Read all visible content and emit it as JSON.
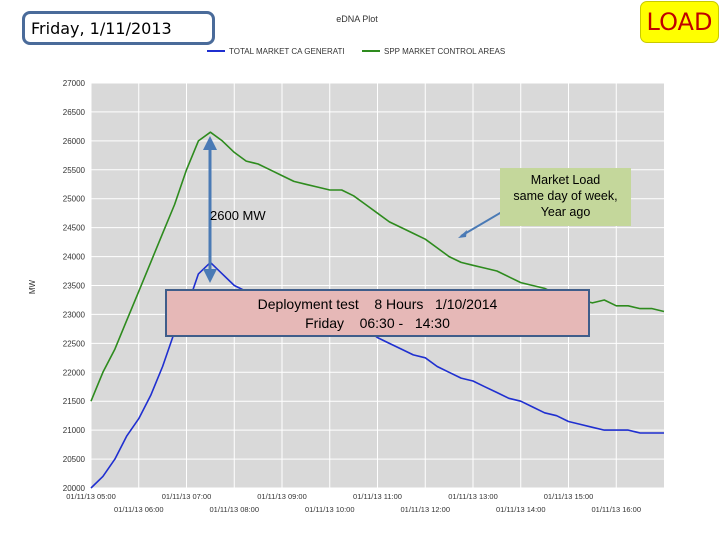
{
  "header": {
    "date_label": "Friday, 1/11/2013",
    "load_badge": "LOAD",
    "plot_title": "eDNA Plot"
  },
  "annotations": {
    "market_load_callout": "Market Load\nsame day of week,\nYear ago",
    "deployment_box": "Deployment test    8 Hours   1/10/2014\nFriday    06:30 -   14:30",
    "mw_difference": "2600 MW"
  },
  "colors": {
    "total_market": "#1f2fd0",
    "spp_control": "#2e8b1e",
    "plot_bg": "#d9d9d9",
    "grid": "#ffffff",
    "arrow": "#4a7ab5"
  },
  "chart_data": {
    "type": "line",
    "title": "eDNA Plot",
    "ylabel": "MW",
    "ylim": [
      20000,
      27000
    ],
    "ytick_step": 500,
    "yticks": [
      "20000",
      "20500",
      "21000",
      "21500",
      "22000",
      "22500",
      "23000",
      "23500",
      "24000",
      "24500",
      "25000",
      "25500",
      "26000",
      "26500",
      "27000"
    ],
    "xlim": [
      5,
      17
    ],
    "xticks_top": [
      {
        "h": 5,
        "label": "01/11/13 05:00"
      },
      {
        "h": 7,
        "label": "01/11/13 07:00"
      },
      {
        "h": 9,
        "label": "01/11/13 09:00"
      },
      {
        "h": 11,
        "label": "01/11/13 11:00"
      },
      {
        "h": 13,
        "label": "01/11/13 13:00"
      },
      {
        "h": 15,
        "label": "01/11/13 15:00"
      }
    ],
    "xticks_bottom": [
      {
        "h": 6,
        "label": "01/11/13 06:00"
      },
      {
        "h": 8,
        "label": "01/11/13 08:00"
      },
      {
        "h": 10,
        "label": "01/11/13 10:00"
      },
      {
        "h": 12,
        "label": "01/11/13 12:00"
      },
      {
        "h": 14,
        "label": "01/11/13 14:00"
      },
      {
        "h": 16,
        "label": "01/11/13 16:00"
      }
    ],
    "legend_position": "top",
    "grid": true,
    "series": [
      {
        "name": "TOTAL MARKET CA GENERATI",
        "color": "#1f2fd0",
        "x": [
          5.0,
          5.25,
          5.5,
          5.75,
          6.0,
          6.25,
          6.5,
          6.75,
          7.0,
          7.25,
          7.5,
          7.75,
          8.0,
          8.25,
          8.5,
          8.75,
          9.0,
          9.25,
          9.5,
          9.75,
          10.0,
          10.25,
          10.5,
          10.75,
          11.0,
          11.25,
          11.5,
          11.75,
          12.0,
          12.25,
          12.5,
          12.75,
          13.0,
          13.25,
          13.5,
          13.75,
          14.0,
          14.25,
          14.5,
          14.75,
          15.0,
          15.25,
          15.5,
          15.75,
          16.0,
          16.25,
          16.5,
          16.75,
          17.0
        ],
        "y": [
          20000,
          20200,
          20500,
          20900,
          21200,
          21600,
          22100,
          22700,
          23100,
          23700,
          23900,
          23700,
          23500,
          23400,
          23350,
          23350,
          23300,
          23250,
          23200,
          23150,
          23050,
          22950,
          22850,
          22750,
          22600,
          22500,
          22400,
          22300,
          22250,
          22100,
          22000,
          21900,
          21850,
          21750,
          21650,
          21550,
          21500,
          21400,
          21300,
          21250,
          21150,
          21100,
          21050,
          21000,
          21000,
          21000,
          20950,
          20950,
          20950
        ]
      },
      {
        "name": "SPP MARKET CONTROL AREAS",
        "color": "#2e8b1e",
        "x": [
          5.0,
          5.25,
          5.5,
          5.75,
          6.0,
          6.25,
          6.5,
          6.75,
          7.0,
          7.25,
          7.5,
          7.75,
          8.0,
          8.25,
          8.5,
          8.75,
          9.0,
          9.25,
          9.5,
          9.75,
          10.0,
          10.25,
          10.5,
          10.75,
          11.0,
          11.25,
          11.5,
          11.75,
          12.0,
          12.25,
          12.5,
          12.75,
          13.0,
          13.25,
          13.5,
          13.75,
          14.0,
          14.25,
          14.5,
          14.75,
          15.0,
          15.25,
          15.5,
          15.75,
          16.0,
          16.25,
          16.5,
          16.75,
          17.0
        ],
        "y": [
          21500,
          22000,
          22400,
          22900,
          23400,
          23900,
          24400,
          24900,
          25500,
          26000,
          26150,
          26000,
          25800,
          25650,
          25600,
          25500,
          25400,
          25300,
          25250,
          25200,
          25150,
          25150,
          25050,
          24900,
          24750,
          24600,
          24500,
          24400,
          24300,
          24150,
          24000,
          23900,
          23850,
          23800,
          23750,
          23650,
          23550,
          23500,
          23450,
          23350,
          23300,
          23250,
          23200,
          23250,
          23150,
          23150,
          23100,
          23100,
          23050
        ]
      }
    ]
  }
}
